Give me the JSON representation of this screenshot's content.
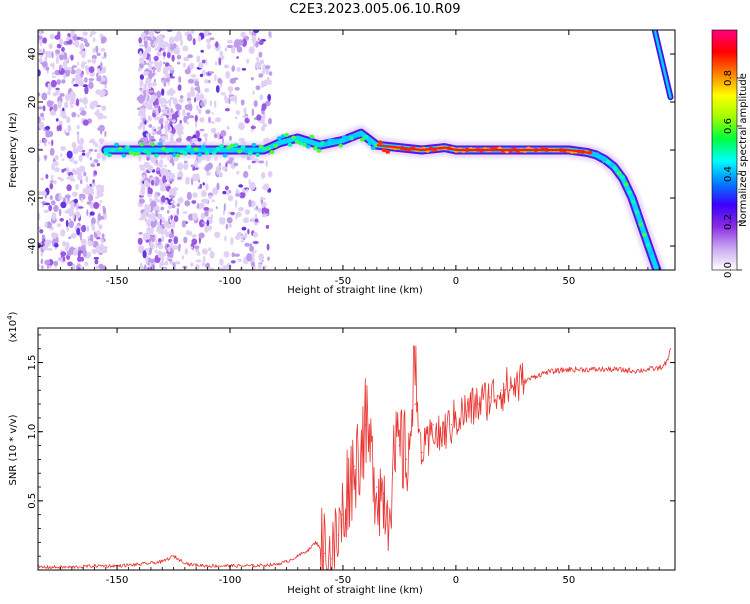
{
  "chart_data": [
    {
      "type": "heatmap",
      "title": "C2E3.2023.005.06.10.R09",
      "xlabel": "Height of straight line (km)",
      "ylabel": "Frequency (Hz)",
      "xlim": [
        -185,
        97
      ],
      "ylim": [
        -50,
        50
      ],
      "xticks": [
        -150,
        -100,
        -50,
        0,
        50
      ],
      "yticks": [
        -40,
        -20,
        0,
        20,
        40
      ],
      "ridge": {
        "x": [
          -155,
          -140,
          -120,
          -100,
          -85,
          -78,
          -70,
          -60,
          -50,
          -42,
          -35,
          -25,
          -15,
          -5,
          0,
          10,
          30,
          50,
          58,
          62,
          66,
          70,
          74,
          78,
          82,
          86,
          89
        ],
        "y": [
          0,
          0,
          0,
          0,
          0,
          3,
          5,
          2,
          4,
          7,
          2,
          1,
          0,
          1,
          0,
          0,
          0,
          0,
          -1,
          -2,
          -4,
          -7,
          -12,
          -20,
          -31,
          -42,
          -50
        ]
      },
      "alias_line": {
        "x": [
          88,
          95
        ],
        "y": [
          50,
          22
        ]
      },
      "colorbar": {
        "label": "Normalized spectral amplitude",
        "ticks": [
          "0.0",
          "0.2",
          "0.4",
          "0.6",
          "0.8"
        ],
        "range": [
          0,
          1
        ],
        "colors": [
          "#ffffff",
          "#c9a8f0",
          "#8a2be2",
          "#3a00ff",
          "#0080ff",
          "#00ffff",
          "#00ff40",
          "#a0ff00",
          "#ffff00",
          "#ff8000",
          "#ff0000",
          "#ff0080"
        ]
      }
    },
    {
      "type": "line",
      "xlabel": "Height of straight line (km)",
      "ylabel": "SNR (10 * v/v)",
      "exponent_label": "(x10",
      "exponent_power": "4",
      "exponent_close": ")",
      "xlim": [
        -185,
        97
      ],
      "ylim": [
        0,
        1.75
      ],
      "xticks": [
        -150,
        -100,
        -50,
        0,
        50
      ],
      "yticks": [
        0.5,
        1.0,
        1.5
      ],
      "ytick_labels": [
        "0.5",
        "1.0",
        "1.5"
      ],
      "color": "#e8332f",
      "series": [
        {
          "name": "SNR",
          "x": [
            -185,
            -170,
            -160,
            -150,
            -140,
            -130,
            -125,
            -122,
            -118,
            -110,
            -100,
            -90,
            -80,
            -75,
            -70,
            -65,
            -62,
            -58,
            -55,
            -52,
            -50,
            -48,
            -45,
            -42,
            -40,
            -38,
            -35,
            -32,
            -30,
            -28,
            -25,
            -22,
            -20,
            -18,
            -15,
            -12,
            -10,
            -8,
            -5,
            -2,
            0,
            5,
            10,
            15,
            20,
            25,
            30,
            35,
            40,
            50,
            60,
            70,
            80,
            85,
            90,
            92,
            94,
            95
          ],
          "y": [
            0.02,
            0.02,
            0.03,
            0.03,
            0.04,
            0.06,
            0.1,
            0.07,
            0.04,
            0.03,
            0.03,
            0.03,
            0.04,
            0.06,
            0.1,
            0.15,
            0.2,
            0.12,
            0.08,
            0.25,
            0.4,
            0.6,
            0.75,
            0.9,
            1.05,
            0.85,
            0.6,
            0.55,
            0.45,
            0.7,
            0.9,
            0.8,
            1.0,
            1.2,
            0.85,
            0.9,
            1.05,
            0.95,
            1.0,
            1.05,
            1.1,
            1.15,
            1.2,
            1.25,
            1.3,
            1.33,
            1.36,
            1.4,
            1.43,
            1.45,
            1.45,
            1.45,
            1.44,
            1.45,
            1.46,
            1.48,
            1.52,
            1.6
          ]
        }
      ]
    }
  ]
}
